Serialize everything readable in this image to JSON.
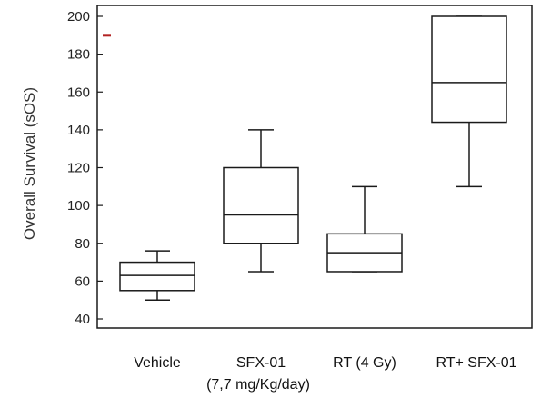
{
  "chart_data": {
    "type": "box",
    "ylabel": "Overall Survival (sOS)",
    "xlabel": "",
    "ylim": [
      37,
      204
    ],
    "yticks": [
      40,
      60,
      80,
      100,
      120,
      140,
      160,
      180,
      200
    ],
    "grid": false,
    "legend": "none",
    "categories": [
      {
        "label": "Vehicle",
        "sublabel": ""
      },
      {
        "label": "SFX-01",
        "sublabel": "(7,7 mg/Kg/day)"
      },
      {
        "label": "RT (4 Gy)",
        "sublabel": ""
      },
      {
        "label": "RT+ SFX-01",
        "sublabel": ""
      }
    ],
    "boxes": [
      {
        "min": 50,
        "q1": 55,
        "median": 63,
        "q3": 70,
        "max": 76
      },
      {
        "min": 65,
        "q1": 80,
        "median": 95,
        "q3": 120,
        "max": 140
      },
      {
        "min": 65,
        "q1": 65,
        "median": 75,
        "q3": 85,
        "max": 110
      },
      {
        "min": 110,
        "q1": 144,
        "median": 165,
        "q3": 200,
        "max": 200
      }
    ],
    "marker": {
      "value": 190,
      "color": "#b22222"
    },
    "colors": {
      "box_stroke": "#1a1a1a",
      "axis": "#1a1a1a"
    }
  }
}
